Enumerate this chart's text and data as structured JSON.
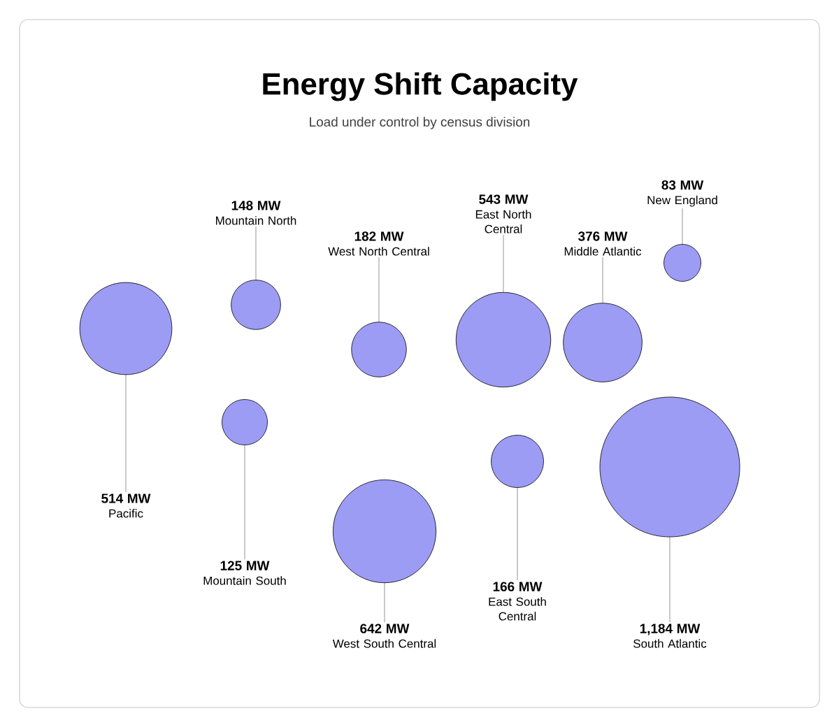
{
  "chart_data": {
    "type": "other",
    "title": "Energy Shift Capacity",
    "subtitle": "Load under control by census division",
    "categories": [
      "Pacific",
      "Mountain North",
      "West North Central",
      "East North Central",
      "Middle Atlantic",
      "New England",
      "Mountain South",
      "West South Central",
      "East South Central",
      "South Atlantic"
    ],
    "values": [
      514,
      148,
      182,
      543,
      376,
      83,
      125,
      642,
      166,
      1184
    ],
    "value_labels": [
      "514 MW",
      "148 MW",
      "182 MW",
      "543 MW",
      "376 MW",
      "83 MW",
      "125 MW",
      "642 MW",
      "166 MW",
      "1,184 MW"
    ],
    "color": "#9c9cf4"
  }
}
